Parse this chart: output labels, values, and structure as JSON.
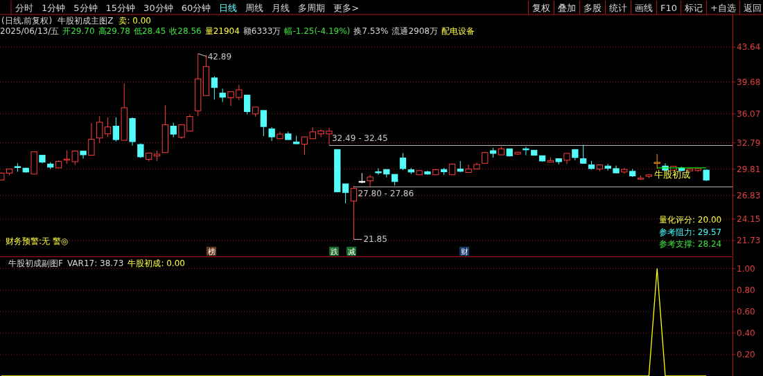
{
  "chart_data": [
    {
      "type": "candlestick",
      "categories": [
        null,
        null,
        null,
        null,
        null,
        null,
        null,
        null,
        null,
        null,
        null,
        null,
        null,
        null,
        null,
        null,
        null,
        null,
        null,
        null,
        null,
        null,
        null,
        null,
        null,
        null,
        null,
        null,
        null,
        null,
        null,
        null,
        null,
        null,
        null,
        null,
        null,
        null,
        null,
        null,
        null,
        null,
        null,
        null,
        null,
        null,
        null,
        null,
        null,
        null,
        null,
        null,
        null,
        null,
        null,
        null,
        null,
        null,
        null,
        null,
        null,
        null,
        null,
        null,
        null,
        null,
        null,
        null,
        null,
        null,
        null,
        null,
        null,
        null,
        null,
        null,
        null,
        null,
        null,
        null,
        null,
        null,
        null,
        null,
        null,
        null,
        null
      ],
      "ohlc": [
        [
          28.58,
          29.43,
          28.53,
          29.36
        ],
        [
          29.36,
          29.87,
          29.1,
          29.82
        ],
        [
          30.1,
          30.47,
          29.51,
          30.06
        ],
        [
          29.92,
          29.98,
          29.4,
          29.48
        ],
        [
          29.25,
          31.77,
          29.25,
          31.77
        ],
        [
          31.38,
          31.38,
          30.47,
          30.6
        ],
        [
          30.39,
          30.6,
          29.82,
          30.03
        ],
        [
          29.95,
          30.81,
          29.95,
          30.68
        ],
        [
          30.9,
          31.95,
          30.42,
          30.95
        ],
        [
          30.65,
          31.95,
          30.29,
          31.85
        ],
        [
          31.85,
          31.85,
          30.99,
          31.43
        ],
        [
          31.38,
          35.02,
          31.38,
          33.18
        ],
        [
          33.33,
          35.8,
          32.76,
          35.12
        ],
        [
          33.8,
          35.67,
          33.46,
          34.58
        ],
        [
          34.68,
          35.67,
          32.94,
          33.15
        ],
        [
          33.07,
          39.51,
          33.07,
          36.76
        ],
        [
          35.54,
          35.67,
          32.47,
          32.92
        ],
        [
          32.6,
          32.73,
          31.07,
          31.2
        ],
        [
          30.92,
          31.62,
          30.68,
          31.62
        ],
        [
          31.3,
          31.9,
          30.73,
          31.51
        ],
        [
          31.69,
          37.02,
          31.69,
          34.84
        ],
        [
          34.68,
          35.07,
          33.41,
          33.77
        ],
        [
          33.41,
          34.84,
          33.25,
          34.84
        ],
        [
          34.11,
          36.01,
          34.11,
          35.77
        ],
        [
          36.42,
          42.89,
          35.8,
          40.03
        ],
        [
          38.14,
          42.76,
          38.14,
          41.43
        ],
        [
          40.14,
          40.34,
          37.67,
          39.05
        ],
        [
          38.42,
          38.92,
          37.41,
          37.95
        ],
        [
          37.9,
          38.58,
          36.97,
          38.58
        ],
        [
          37.93,
          39.36,
          37.62,
          38.79
        ],
        [
          38.19,
          38.19,
          36.01,
          36.32
        ],
        [
          36.06,
          36.84,
          35.75,
          36.84
        ],
        [
          36.45,
          36.45,
          33.54,
          34.63
        ],
        [
          34.37,
          34.58,
          32.99,
          33.46
        ],
        [
          33.25,
          34.03,
          33.25,
          33.77
        ],
        [
          33.8,
          34.06,
          33.15,
          33.15
        ],
        [
          32.89,
          33.59,
          32.63,
          32.68
        ],
        [
          32.63,
          33.46,
          31.43,
          33.46
        ],
        [
          33.25,
          34.55,
          33.25,
          34.03
        ],
        [
          33.8,
          34.29,
          33.41,
          34.14
        ],
        [
          33.8,
          34.5,
          32.55,
          34.11
        ],
        [
          32.03,
          32.03,
          27.23,
          27.23
        ],
        [
          28.14,
          28.14,
          25.93,
          27.15
        ],
        [
          26.19,
          27.88,
          21.85,
          27.62
        ],
        [
          28.43,
          29.36,
          28.22,
          28.4
        ],
        [
          28.48,
          29.17,
          27.88,
          28.92
        ],
        [
          29.51,
          29.9,
          29.17,
          29.43
        ],
        [
          29.77,
          29.77,
          28.87,
          29.25
        ],
        [
          29.22,
          29.22,
          27.95,
          28.4
        ],
        [
          31.07,
          31.64,
          29.69,
          29.87
        ],
        [
          29.74,
          29.95,
          29.25,
          29.48
        ],
        [
          29.17,
          29.64,
          29.17,
          29.64
        ],
        [
          29.51,
          29.64,
          29.17,
          29.25
        ],
        [
          29.17,
          29.87,
          29.17,
          29.74
        ],
        [
          29.77,
          29.95,
          29.17,
          29.51
        ],
        [
          29.17,
          30.47,
          29.17,
          30.39
        ],
        [
          29.82,
          30.73,
          29.48,
          29.56
        ],
        [
          29.43,
          30.34,
          29.43,
          29.82
        ],
        [
          29.82,
          30.55,
          29.82,
          30.34
        ],
        [
          30.47,
          31.77,
          30.47,
          31.69
        ],
        [
          31.9,
          32.21,
          31.12,
          31.59
        ],
        [
          31.43,
          32.37,
          31.38,
          32.11
        ],
        [
          32.11,
          32.11,
          31.25,
          31.3
        ],
        [
          31.51,
          31.77,
          31.43,
          31.72
        ],
        [
          32.11,
          32.34,
          31.38,
          32.01
        ],
        [
          31.95,
          31.95,
          31.38,
          31.38
        ],
        [
          31.33,
          31.33,
          30.65,
          30.73
        ],
        [
          30.6,
          31.17,
          30.6,
          30.78
        ],
        [
          30.99,
          30.99,
          30.34,
          30.65
        ],
        [
          30.81,
          31.59,
          30.39,
          31.59
        ],
        [
          32.03,
          32.03,
          30.81,
          31.12
        ],
        [
          30.99,
          32.55,
          30.42,
          30.47
        ],
        [
          30.29,
          30.73,
          29.77,
          29.87
        ],
        [
          29.82,
          30.29,
          29.56,
          30.29
        ],
        [
          30.16,
          30.39,
          29.64,
          29.9
        ],
        [
          29.87,
          30.21,
          29.38,
          29.38
        ],
        [
          29.48,
          29.95,
          29.3,
          29.77
        ],
        [
          29.56,
          29.82,
          28.92,
          29.04
        ],
        [
          28.74,
          29.09,
          28.58,
          28.79
        ],
        [
          28.99,
          29.25,
          28.79,
          29.17
        ],
        [
          30.52,
          31.51,
          29.87,
          30.58
        ],
        [
          30.16,
          30.47,
          29.69,
          29.69
        ],
        [
          29.69,
          30.16,
          29.69,
          30.13
        ],
        [
          29.95,
          30.08,
          29.56,
          29.64
        ],
        [
          29.61,
          29.87,
          29.56,
          29.82
        ],
        [
          29.64,
          29.95,
          29.51,
          29.87
        ],
        [
          29.7,
          29.78,
          28.45,
          28.56
        ]
      ],
      "colors": [
        "#ff3c3c",
        "#ff3c3c",
        "#54fcfc",
        "#54fcfc",
        "#ff3c3c",
        "#54fcfc",
        "#54fcfc",
        "#ff3c3c",
        "#ff3c3c",
        "#ff3c3c",
        "#54fcfc",
        "#ff3c3c",
        "#ff3c3c",
        "#ff3c3c",
        "#54fcfc",
        "#ff3c3c",
        "#54fcfc",
        "#54fcfc",
        "#ff3c3c",
        "#ff3c3c",
        "#ff3c3c",
        "#54fcfc",
        "#ff3c3c",
        "#ff3c3c",
        "#ff3c3c",
        "#ff3c3c",
        "#54fcfc",
        "#54fcfc",
        "#ff3c3c",
        "#ff3c3c",
        "#54fcfc",
        "#ff3c3c",
        "#54fcfc",
        "#54fcfc",
        "#ff3c3c",
        "#54fcfc",
        "#54fcfc",
        "#ff3c3c",
        "#ff3c3c",
        "#ff3c3c",
        "#ff3c3c",
        "#54fcfc",
        "#54fcfc",
        "#ff3c3c",
        "#ffffff",
        "#ff3c3c",
        "#54fcfc",
        "#54fcfc",
        "#54fcfc",
        "#54fcfc",
        "#54fcfc",
        "#ff3c3c",
        "#54fcfc",
        "#ff3c3c",
        "#54fcfc",
        "#ff3c3c",
        "#54fcfc",
        "#ff3c3c",
        "#ff3c3c",
        "#ff3c3c",
        "#54fcfc",
        "#ff3c3c",
        "#54fcfc",
        "#ff3c3c",
        "#54fcfc",
        "#54fcfc",
        "#54fcfc",
        "#ff3c3c",
        "#54fcfc",
        "#ff3c3c",
        "#54fcfc",
        "#54fcfc",
        "#54fcfc",
        "#ff3c3c",
        "#54fcfc",
        "#54fcfc",
        "#ff3c3c",
        "#54fcfc",
        "#ff3c3c",
        "#ff3c3c",
        "#ff9900",
        "#54fcfc",
        "#ff3c3c",
        "#54fcfc",
        "#ff3c3c",
        "#ff3c3c",
        "#54fcfc"
      ],
      "series": [
        {
          "type": "line",
          "color": "#00e000",
          "values": [
            null,
            null,
            null,
            null,
            null,
            null,
            null,
            null,
            null,
            null,
            null,
            null,
            null,
            null,
            null,
            null,
            null,
            null,
            null,
            null,
            null,
            null,
            null,
            null,
            null,
            null,
            null,
            null,
            null,
            null,
            null,
            null,
            null,
            null,
            null,
            null,
            null,
            null,
            null,
            null,
            null,
            null,
            null,
            null,
            null,
            null,
            null,
            null,
            null,
            null,
            null,
            null,
            null,
            null,
            null,
            null,
            null,
            null,
            null,
            null,
            null,
            null,
            null,
            null,
            null,
            null,
            null,
            null,
            null,
            null,
            null,
            null,
            null,
            null,
            null,
            null,
            null,
            null,
            null,
            null,
            29.95,
            29.95,
            29.95,
            29.95,
            29.95,
            29.95,
            29.95
          ]
        }
      ],
      "ylim": [
        20.0,
        47.32
      ],
      "yticks": [
        21.73,
        24.15,
        26.83,
        29.81,
        32.79,
        36.07,
        39.68,
        43.64
      ],
      "grid": "y",
      "ref_lines": [
        {
          "axis": "y",
          "value": 32.49,
          "label": "32.49 - 32.45",
          "color": "#c0c0c0"
        },
        {
          "axis": "y",
          "value": 27.8,
          "label": "27.80 - 27.86",
          "color": "#c0c0c0"
        }
      ],
      "annotations": [
        "分时",
        "1分钟",
        "5分钟",
        "15分钟",
        "30分钟",
        "60分钟",
        "日线",
        "周线",
        "月线",
        "多周期",
        "更多>",
        "复权",
        "叠加",
        "多股",
        "统计",
        "画线",
        "F10",
        "标记",
        "+自选",
        "返回",
        "(日线,前复权)",
        "牛股初成主图Z",
        "卖: 0.00",
        "2025/06/13/五",
        "开29.70",
        "高29.78",
        "低28.45",
        "收28.56",
        "量21904",
        "额6333万",
        "幅-1.25(-4.19%)",
        "换7.53%",
        "流通2908万",
        "配电设备",
        "42.89",
        "21.85",
        "牛股初成",
        "量化评分: 20.00",
        "参考阻力: 29.57",
        "参考支撑: 28.24",
        "财务预警:无 警◎",
        "榜",
        "跌",
        "减",
        "财"
      ]
    },
    {
      "type": "line",
      "categories": [
        null,
        null,
        null,
        null,
        null,
        null,
        null,
        null,
        null,
        null,
        null,
        null,
        null,
        null,
        null,
        null,
        null,
        null,
        null,
        null,
        null,
        null,
        null,
        null,
        null,
        null,
        null,
        null,
        null,
        null,
        null,
        null,
        null,
        null,
        null,
        null,
        null,
        null,
        null,
        null,
        null,
        null,
        null,
        null,
        null,
        null,
        null,
        null,
        null,
        null,
        null,
        null,
        null,
        null,
        null,
        null,
        null,
        null,
        null,
        null,
        null,
        null,
        null,
        null,
        null,
        null,
        null,
        null,
        null,
        null,
        null,
        null,
        null,
        null,
        null,
        null,
        null,
        null,
        null,
        null,
        null,
        null,
        null,
        null,
        null,
        null,
        null
      ],
      "series": [
        {
          "color": "#ffff00",
          "values": [
            0,
            0,
            0,
            0,
            0,
            0,
            0,
            0,
            0,
            0,
            0,
            0,
            0,
            0,
            0,
            0,
            0,
            0,
            0,
            0,
            0,
            0,
            0,
            0,
            0,
            0,
            0,
            0,
            0,
            0,
            0,
            0,
            0,
            0,
            0,
            0,
            0,
            0,
            0,
            0,
            0,
            0,
            0,
            0,
            0,
            0,
            0,
            0,
            0,
            0,
            0,
            0,
            0,
            0,
            0,
            0,
            0,
            0,
            0,
            0,
            0,
            0,
            0,
            0,
            0,
            0,
            0,
            0,
            0,
            0,
            0,
            0,
            0,
            0,
            0,
            0,
            0,
            0,
            0,
            0,
            1,
            0,
            0,
            0,
            0,
            0,
            0
          ]
        }
      ],
      "ylim": [
        0,
        1.11
      ],
      "yticks": [
        {
          "value": 0.2,
          "label": "0.20"
        },
        {
          "value": 0.4,
          "label": "0.40"
        },
        {
          "value": 0.6,
          "label": "0.60"
        },
        {
          "value": 0.8,
          "label": "0.80"
        },
        {
          "value": 1,
          "label": "1.00"
        }
      ],
      "grid": "y",
      "annotations": [
        "牛股初成副图F",
        "VAR17: 38.73",
        "牛股初成: 0.00"
      ]
    }
  ]
}
